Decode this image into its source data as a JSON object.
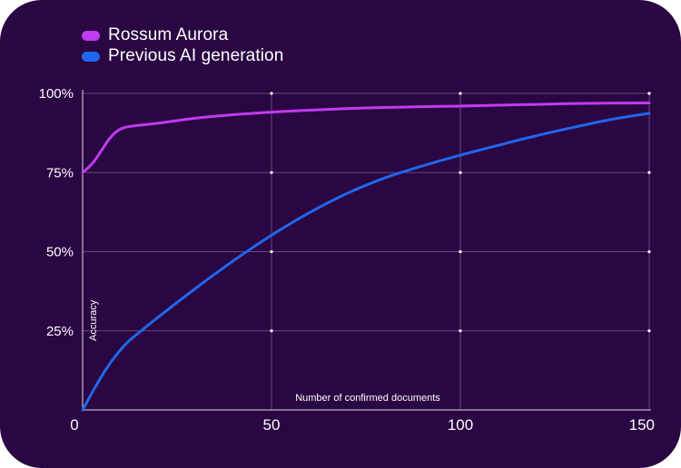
{
  "chart_data": {
    "type": "line",
    "title": "",
    "xlabel": "Number of confirmed documents",
    "ylabel": "Accuracy",
    "xlim": [
      0,
      150
    ],
    "ylim": [
      0,
      100
    ],
    "x_ticks": [
      0,
      50,
      100,
      150
    ],
    "x_tick_labels": [
      "0",
      "50",
      "100",
      "150"
    ],
    "y_ticks": [
      25,
      50,
      75,
      100
    ],
    "y_tick_labels": [
      "25%",
      "50%",
      "75%",
      "100%"
    ],
    "grid": true,
    "legend_position": "top-left",
    "series": [
      {
        "name": "Rossum Aurora",
        "color": "#c13bf0",
        "points": [
          [
            0,
            75
          ],
          [
            1,
            76
          ],
          [
            3,
            78.5
          ],
          [
            5,
            82
          ],
          [
            7,
            85.5
          ],
          [
            9,
            88
          ],
          [
            11,
            89.2
          ],
          [
            14,
            89.8
          ],
          [
            20,
            90.6
          ],
          [
            30,
            92.2
          ],
          [
            40,
            93.3
          ],
          [
            50,
            94.1
          ],
          [
            60,
            94.7
          ],
          [
            75,
            95.4
          ],
          [
            90,
            95.8
          ],
          [
            100,
            96
          ],
          [
            115,
            96.4
          ],
          [
            130,
            96.8
          ],
          [
            150,
            97
          ]
        ]
      },
      {
        "name": "Previous AI generation",
        "color": "#1f67ee",
        "points": [
          [
            0,
            0
          ],
          [
            3,
            6.5
          ],
          [
            6,
            12.5
          ],
          [
            9,
            17.5
          ],
          [
            12,
            21.5
          ],
          [
            15,
            24.5
          ],
          [
            20,
            29.3
          ],
          [
            30,
            38.5
          ],
          [
            40,
            47.2
          ],
          [
            50,
            55.2
          ],
          [
            60,
            62.3
          ],
          [
            70,
            68.4
          ],
          [
            80,
            73.3
          ],
          [
            90,
            77.1
          ],
          [
            100,
            80.5
          ],
          [
            110,
            83.6
          ],
          [
            120,
            86.6
          ],
          [
            130,
            89.3
          ],
          [
            140,
            91.8
          ],
          [
            150,
            93.7
          ]
        ]
      }
    ]
  }
}
